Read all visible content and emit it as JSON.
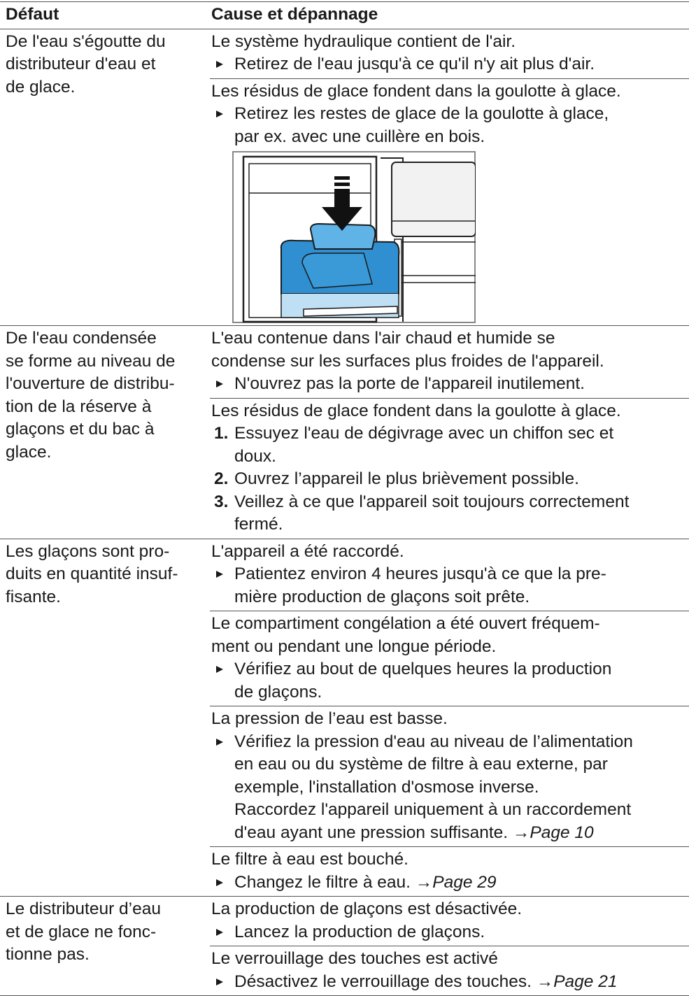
{
  "table": {
    "headers": [
      "Défaut",
      "Cause et dépannage"
    ],
    "rows": [
      {
        "fault": [
          "De l'eau s'égoutte du",
          "distributeur d'eau et",
          "de glace."
        ],
        "causes": [
          {
            "lines": [
              "Le système hydraulique contient de l'air."
            ],
            "steps": [
              {
                "lines": [
                  "Retirez de l'eau jusqu'à ce qu'il n'y ait plus d'air."
                ]
              }
            ]
          },
          {
            "lines": [
              "Les résidus de glace fondent dans la goulotte à glace."
            ],
            "steps": [
              {
                "lines": [
                  "Retirez les restes de glace de la goulotte à glace,",
                  "par ex. avec une cuillère en bois."
                ]
              }
            ],
            "figure": true
          }
        ]
      },
      {
        "fault": [
          "De l'eau condensée",
          "se forme au niveau de",
          "l'ouverture de distribu-",
          "tion de la réserve à",
          "glaçons et du bac à",
          "glace."
        ],
        "causes": [
          {
            "lines": [
              "L'eau contenue dans l'air chaud et humide se",
              "condense sur les surfaces plus froides de l'appareil."
            ],
            "steps": [
              {
                "lines": [
                  "N'ouvrez pas la porte de l'appareil inutilement."
                ]
              }
            ]
          },
          {
            "lines": [
              "Les résidus de glace fondent dans la goulotte à glace."
            ],
            "steps": [
              {
                "number": "1.",
                "lines": [
                  "Essuyez l'eau de dégivrage avec un chiffon sec et",
                  "doux."
                ]
              },
              {
                "number": "2.",
                "lines": [
                  "Ouvrez l’appareil le plus brièvement possible."
                ]
              },
              {
                "number": "3.",
                "lines": [
                  "Veillez à ce que l'appareil soit toujours correctement",
                  "fermé."
                ]
              }
            ]
          }
        ]
      },
      {
        "fault": [
          "Les glaçons sont pro-",
          "duits en quantité insuf-",
          "fisante."
        ],
        "causes": [
          {
            "lines": [
              "L'appareil a été raccordé."
            ],
            "steps": [
              {
                "lines": [
                  "Patientez environ 4 heures jusqu'à ce que la pre-",
                  "mière production de glaçons soit prête."
                ]
              }
            ]
          },
          {
            "lines": [
              "Le compartiment congélation a été ouvert fréquem-",
              "ment ou pendant une longue période."
            ],
            "steps": [
              {
                "lines": [
                  "Vérifiez au bout de quelques heures la production",
                  "de glaçons."
                ]
              }
            ]
          },
          {
            "lines": [
              "La pression de l’eau est basse."
            ],
            "steps": [
              {
                "lines": [
                  "Vérifiez la pression d'eau au niveau de l’alimentation",
                  "en eau ou du système de filtre à eau externe, par",
                  "exemple, l'installation d'osmose inverse.",
                  "Raccordez l'appareil uniquement à un raccordement",
                  "d'eau ayant une pression suffisante."
                ],
                "ref": {
                  "arrow": "→",
                  "page": "Page 10"
                }
              }
            ]
          },
          {
            "lines": [
              "Le filtre à eau est bouché."
            ],
            "steps": [
              {
                "lines": [
                  "Changez le filtre à eau."
                ],
                "ref": {
                  "arrow": "→",
                  "page": "Page 29"
                }
              }
            ]
          }
        ]
      },
      {
        "fault": [
          "Le distributeur d’eau",
          "et de glace ne fonc-",
          "tionne pas."
        ],
        "causes": [
          {
            "lines": [
              "La production de glaçons est désactivée."
            ],
            "steps": [
              {
                "lines": [
                  "Lancez la production de glaçons."
                ]
              }
            ]
          },
          {
            "lines": [
              "Le verrouillage des touches est activé"
            ],
            "steps": [
              {
                "lines": [
                  "Désactivez le verrouillage des touches."
                ],
                "ref": {
                  "arrow": "→",
                  "page": "Page 21"
                }
              }
            ]
          }
        ]
      }
    ]
  }
}
